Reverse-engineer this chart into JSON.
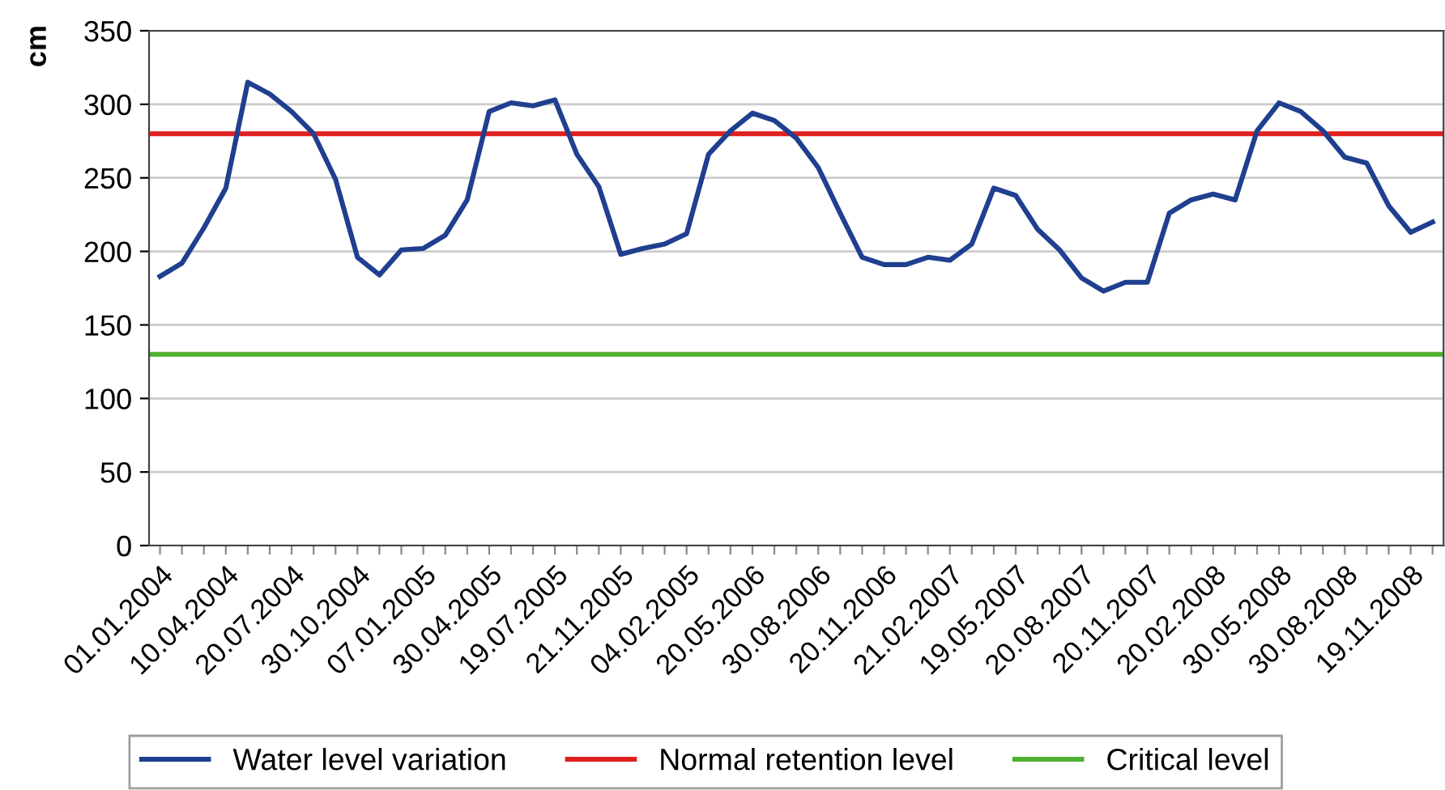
{
  "chart_data": {
    "type": "line",
    "ylabel": "cm",
    "categories": [
      "01.01.2004",
      null,
      null,
      "10.04.2004",
      null,
      null,
      "20.07.2004",
      null,
      null,
      "30.10.2004",
      null,
      null,
      "07.01.2005",
      null,
      null,
      "30.04.2005",
      null,
      null,
      "19.07.2005",
      null,
      null,
      "21.11.2005",
      null,
      null,
      "04.02.2005",
      null,
      null,
      "20.05.2006",
      null,
      null,
      "30.08.2006",
      null,
      null,
      "20.11.2006",
      null,
      null,
      "21.02.2007",
      null,
      null,
      "19.05.2007",
      null,
      null,
      "20.08.2007",
      null,
      null,
      "20.11.2007",
      null,
      null,
      "20.02.2008",
      null,
      null,
      "30.05.2008",
      null,
      null,
      "30.08.2008",
      null,
      null,
      "19.11.2008",
      null
    ],
    "series": [
      {
        "name": "Water level variation",
        "color": "#1f3f8f",
        "values": [
          183,
          192,
          216,
          243,
          315,
          307,
          295,
          280,
          249,
          196,
          184,
          201,
          202,
          211,
          235,
          295,
          301,
          299,
          303,
          266,
          244,
          198,
          202,
          205,
          212,
          266,
          282,
          294,
          289,
          277,
          257,
          226,
          196,
          191,
          191,
          196,
          194,
          205,
          243,
          238,
          215,
          201,
          182,
          173,
          179,
          179,
          226,
          235,
          239,
          235,
          282,
          301,
          295,
          282,
          264,
          260,
          231,
          213,
          220
        ]
      }
    ],
    "ref_lines": [
      {
        "axis": "y",
        "value": 280,
        "label": "Normal retention level",
        "color": "#e02020"
      },
      {
        "axis": "y",
        "value": 130,
        "label": "Critical level",
        "color": "#50b030"
      }
    ],
    "ylim": [
      0,
      350
    ],
    "yticks": [
      0,
      50,
      100,
      150,
      200,
      250,
      300,
      350
    ],
    "grid": "y",
    "legend": "bottom",
    "marker": "none",
    "line_style": "solid"
  }
}
